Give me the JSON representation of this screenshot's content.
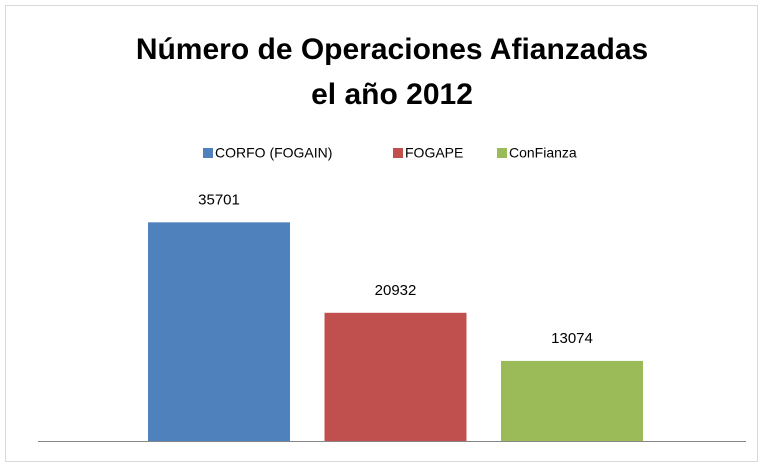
{
  "chart_data": {
    "type": "bar",
    "title": [
      "Número de Operaciones Afianzadas",
      "el año 2012"
    ],
    "categories": [
      null
    ],
    "series": [
      {
        "name": "CORFO (FOGAIN)",
        "color": "#4f81bd",
        "values": [
          35701
        ]
      },
      {
        "name": "FOGAPE",
        "color": "#c0504d",
        "values": [
          20932
        ]
      },
      {
        "name": "ConFianza",
        "color": "#9bbb59",
        "values": [
          13074
        ]
      }
    ],
    "ylim": [
      0,
      40000
    ],
    "legend": "top"
  }
}
